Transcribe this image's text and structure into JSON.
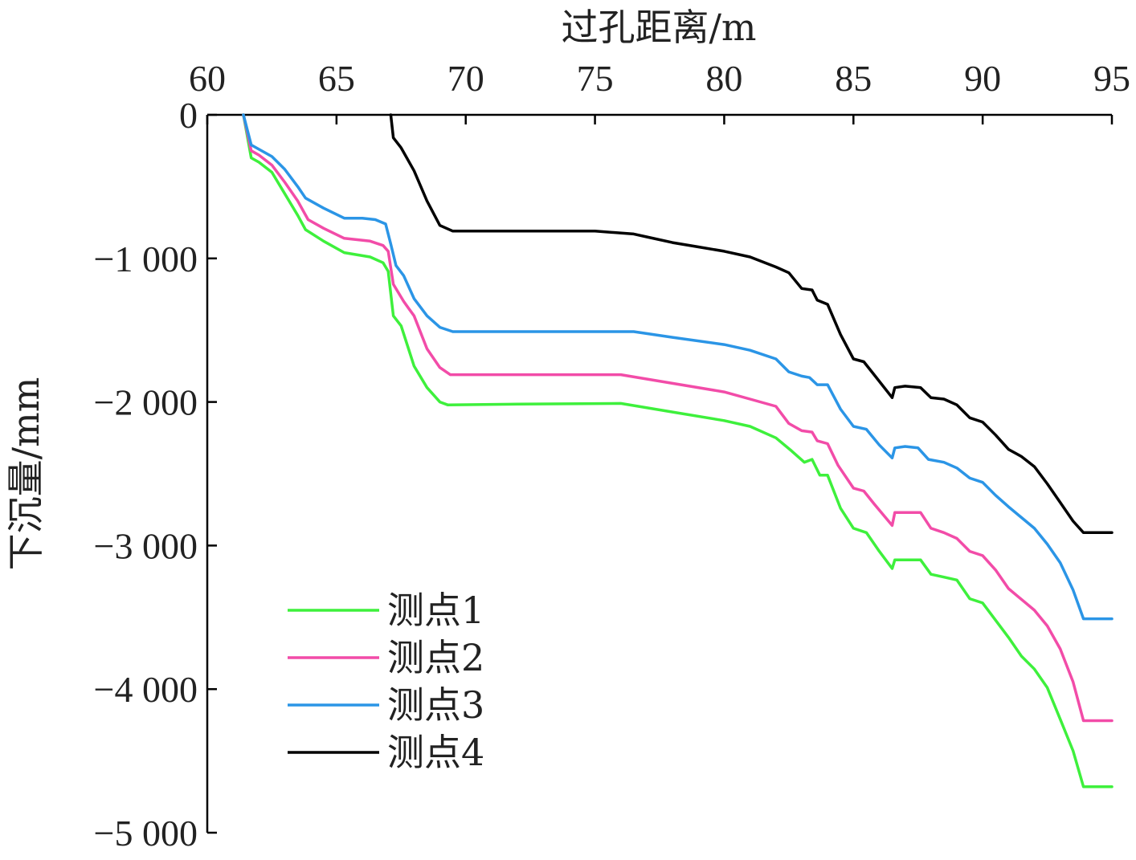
{
  "chart_data": {
    "type": "line",
    "xlabel": "过孔距离/m",
    "ylabel": "下沉量/mm",
    "xlim": [
      60,
      95
    ],
    "ylim": [
      -5000,
      0
    ],
    "x_axis_position": "top",
    "x_ticks": [
      60,
      65,
      70,
      75,
      80,
      85,
      90,
      95
    ],
    "x_tick_labels": [
      "60",
      "65",
      "70",
      "75",
      "80",
      "85",
      "90",
      "95"
    ],
    "y_ticks": [
      0,
      -1000,
      -2000,
      -3000,
      -4000,
      -5000
    ],
    "y_tick_labels": [
      "0",
      "−1 000",
      "−2 000",
      "−3 000",
      "−4 000",
      "−5 000"
    ],
    "grid": false,
    "legend_position": "bottom-left",
    "series": [
      {
        "name": "测点1",
        "color": "#3ef03c",
        "points": [
          [
            61.4,
            0
          ],
          [
            61.7,
            -300
          ],
          [
            62.0,
            -330
          ],
          [
            62.5,
            -400
          ],
          [
            63.0,
            -550
          ],
          [
            63.5,
            -700
          ],
          [
            63.8,
            -800
          ],
          [
            64.5,
            -880
          ],
          [
            65.3,
            -960
          ],
          [
            66.3,
            -990
          ],
          [
            66.8,
            -1030
          ],
          [
            67.0,
            -1090
          ],
          [
            67.2,
            -1400
          ],
          [
            67.5,
            -1470
          ],
          [
            68.0,
            -1750
          ],
          [
            68.5,
            -1900
          ],
          [
            69.0,
            -2000
          ],
          [
            69.3,
            -2020
          ],
          [
            72.0,
            -2015
          ],
          [
            76.0,
            -2010
          ],
          [
            78.0,
            -2070
          ],
          [
            80.0,
            -2130
          ],
          [
            81.0,
            -2170
          ],
          [
            82.0,
            -2250
          ],
          [
            82.6,
            -2340
          ],
          [
            83.1,
            -2420
          ],
          [
            83.4,
            -2400
          ],
          [
            83.7,
            -2510
          ],
          [
            84.0,
            -2510
          ],
          [
            84.5,
            -2740
          ],
          [
            85.0,
            -2880
          ],
          [
            85.5,
            -2910
          ],
          [
            86.0,
            -3040
          ],
          [
            86.5,
            -3160
          ],
          [
            86.6,
            -3100
          ],
          [
            87.0,
            -3100
          ],
          [
            87.6,
            -3100
          ],
          [
            88.0,
            -3200
          ],
          [
            88.5,
            -3220
          ],
          [
            89.0,
            -3240
          ],
          [
            89.5,
            -3370
          ],
          [
            90.0,
            -3400
          ],
          [
            91.0,
            -3640
          ],
          [
            91.5,
            -3770
          ],
          [
            92.0,
            -3860
          ],
          [
            92.5,
            -3990
          ],
          [
            93.0,
            -4210
          ],
          [
            93.5,
            -4430
          ],
          [
            93.9,
            -4680
          ],
          [
            95.0,
            -4680
          ]
        ]
      },
      {
        "name": "测点2",
        "color": "#f24ca8",
        "points": [
          [
            61.4,
            0
          ],
          [
            61.7,
            -250
          ],
          [
            62.0,
            -280
          ],
          [
            62.5,
            -350
          ],
          [
            63.0,
            -470
          ],
          [
            63.5,
            -600
          ],
          [
            63.9,
            -730
          ],
          [
            64.5,
            -790
          ],
          [
            65.3,
            -860
          ],
          [
            66.3,
            -880
          ],
          [
            66.8,
            -910
          ],
          [
            67.0,
            -950
          ],
          [
            67.2,
            -1180
          ],
          [
            67.6,
            -1300
          ],
          [
            67.8,
            -1350
          ],
          [
            68.0,
            -1400
          ],
          [
            68.5,
            -1630
          ],
          [
            69.0,
            -1760
          ],
          [
            69.4,
            -1810
          ],
          [
            72.0,
            -1810
          ],
          [
            76.0,
            -1810
          ],
          [
            78.0,
            -1870
          ],
          [
            80.0,
            -1930
          ],
          [
            81.0,
            -1980
          ],
          [
            82.0,
            -2030
          ],
          [
            82.5,
            -2150
          ],
          [
            83.0,
            -2200
          ],
          [
            83.4,
            -2210
          ],
          [
            83.6,
            -2270
          ],
          [
            84.0,
            -2290
          ],
          [
            84.4,
            -2440
          ],
          [
            85.0,
            -2600
          ],
          [
            85.4,
            -2620
          ],
          [
            85.8,
            -2710
          ],
          [
            86.5,
            -2860
          ],
          [
            86.6,
            -2770
          ],
          [
            87.0,
            -2770
          ],
          [
            87.6,
            -2770
          ],
          [
            88.0,
            -2880
          ],
          [
            88.5,
            -2910
          ],
          [
            89.0,
            -2950
          ],
          [
            89.5,
            -3040
          ],
          [
            90.0,
            -3070
          ],
          [
            90.5,
            -3170
          ],
          [
            91.0,
            -3300
          ],
          [
            92.0,
            -3450
          ],
          [
            92.5,
            -3560
          ],
          [
            93.0,
            -3720
          ],
          [
            93.5,
            -3950
          ],
          [
            93.9,
            -4220
          ],
          [
            95.0,
            -4220
          ]
        ]
      },
      {
        "name": "测点3",
        "color": "#2b95e6",
        "points": [
          [
            61.4,
            0
          ],
          [
            61.7,
            -210
          ],
          [
            62.0,
            -240
          ],
          [
            62.5,
            -290
          ],
          [
            63.0,
            -380
          ],
          [
            63.5,
            -500
          ],
          [
            63.8,
            -580
          ],
          [
            64.5,
            -650
          ],
          [
            65.3,
            -720
          ],
          [
            66.0,
            -720
          ],
          [
            66.5,
            -730
          ],
          [
            66.9,
            -760
          ],
          [
            67.1,
            -900
          ],
          [
            67.3,
            -1050
          ],
          [
            67.6,
            -1120
          ],
          [
            68.0,
            -1280
          ],
          [
            68.5,
            -1400
          ],
          [
            69.0,
            -1480
          ],
          [
            69.5,
            -1510
          ],
          [
            72.0,
            -1510
          ],
          [
            76.5,
            -1510
          ],
          [
            78.0,
            -1550
          ],
          [
            80.0,
            -1600
          ],
          [
            81.0,
            -1640
          ],
          [
            82.0,
            -1700
          ],
          [
            82.5,
            -1790
          ],
          [
            83.0,
            -1820
          ],
          [
            83.3,
            -1830
          ],
          [
            83.6,
            -1880
          ],
          [
            84.0,
            -1880
          ],
          [
            84.5,
            -2050
          ],
          [
            85.0,
            -2170
          ],
          [
            85.5,
            -2190
          ],
          [
            86.0,
            -2300
          ],
          [
            86.5,
            -2390
          ],
          [
            86.6,
            -2320
          ],
          [
            87.0,
            -2310
          ],
          [
            87.5,
            -2320
          ],
          [
            87.9,
            -2400
          ],
          [
            88.5,
            -2420
          ],
          [
            89.0,
            -2460
          ],
          [
            89.5,
            -2530
          ],
          [
            90.0,
            -2560
          ],
          [
            90.5,
            -2650
          ],
          [
            91.0,
            -2730
          ],
          [
            92.0,
            -2880
          ],
          [
            92.5,
            -2990
          ],
          [
            93.0,
            -3120
          ],
          [
            93.5,
            -3310
          ],
          [
            93.9,
            -3510
          ],
          [
            95.0,
            -3510
          ]
        ]
      },
      {
        "name": "测点4",
        "color": "#000000",
        "points": [
          [
            67.1,
            0
          ],
          [
            67.2,
            -160
          ],
          [
            67.5,
            -230
          ],
          [
            68.0,
            -390
          ],
          [
            68.5,
            -600
          ],
          [
            69.0,
            -770
          ],
          [
            69.5,
            -810
          ],
          [
            72.0,
            -810
          ],
          [
            75.0,
            -810
          ],
          [
            76.5,
            -830
          ],
          [
            77.0,
            -850
          ],
          [
            78.0,
            -890
          ],
          [
            79.0,
            -920
          ],
          [
            80.0,
            -950
          ],
          [
            81.0,
            -990
          ],
          [
            82.0,
            -1060
          ],
          [
            82.5,
            -1100
          ],
          [
            83.0,
            -1210
          ],
          [
            83.4,
            -1220
          ],
          [
            83.6,
            -1290
          ],
          [
            84.0,
            -1320
          ],
          [
            84.5,
            -1530
          ],
          [
            85.0,
            -1700
          ],
          [
            85.4,
            -1720
          ],
          [
            85.8,
            -1810
          ],
          [
            86.5,
            -1970
          ],
          [
            86.6,
            -1900
          ],
          [
            87.0,
            -1890
          ],
          [
            87.6,
            -1900
          ],
          [
            88.0,
            -1970
          ],
          [
            88.5,
            -1980
          ],
          [
            89.0,
            -2020
          ],
          [
            89.5,
            -2110
          ],
          [
            90.0,
            -2140
          ],
          [
            90.5,
            -2230
          ],
          [
            91.0,
            -2330
          ],
          [
            91.5,
            -2380
          ],
          [
            92.0,
            -2450
          ],
          [
            92.5,
            -2570
          ],
          [
            93.0,
            -2700
          ],
          [
            93.5,
            -2830
          ],
          [
            93.9,
            -2910
          ],
          [
            95.0,
            -2910
          ]
        ]
      }
    ]
  }
}
